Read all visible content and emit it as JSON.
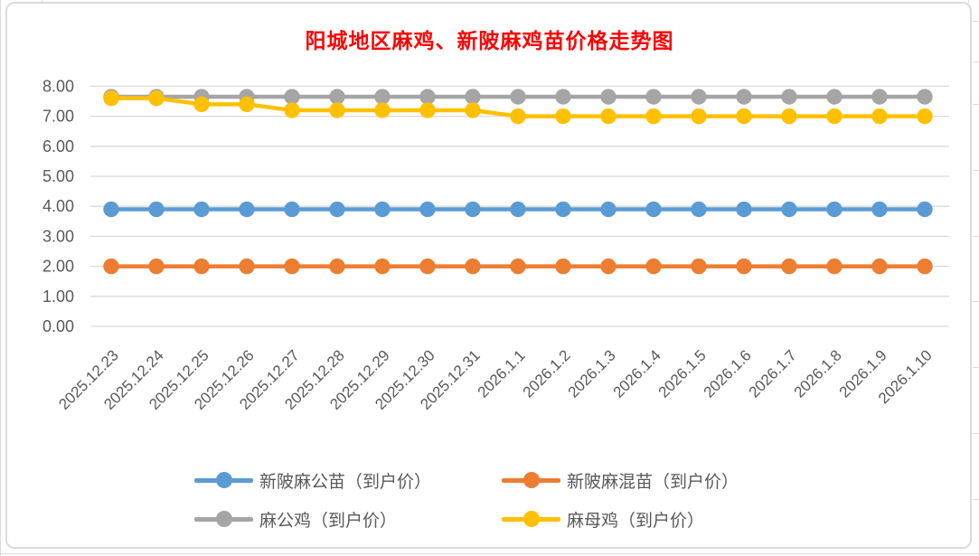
{
  "chart_data": {
    "type": "line",
    "title": "阳城地区麻鸡、新陂麻鸡苗价格走势图",
    "title_color": "#FF0000",
    "categories": [
      "2025.12.23",
      "2025.12.24",
      "2025.12.25",
      "2025.12.26",
      "2025.12.27",
      "2025.12.28",
      "2025.12.29",
      "2025.12.30",
      "2025.12.31",
      "2026.1.1",
      "2026.1.2",
      "2026.1.3",
      "2026.1.4",
      "2026.1.5",
      "2026.1.6",
      "2026.1.7",
      "2026.1.8",
      "2026.1.9",
      "2026.1.10"
    ],
    "series": [
      {
        "name": "新陂麻公苗（到户价）",
        "color": "#5B9BD5",
        "values": [
          3.9,
          3.9,
          3.9,
          3.9,
          3.9,
          3.9,
          3.9,
          3.9,
          3.9,
          3.9,
          3.9,
          3.9,
          3.9,
          3.9,
          3.9,
          3.9,
          3.9,
          3.9,
          3.9
        ]
      },
      {
        "name": "新陂麻混苗（到户价）",
        "color": "#ED7D31",
        "values": [
          2.0,
          2.0,
          2.0,
          2.0,
          2.0,
          2.0,
          2.0,
          2.0,
          2.0,
          2.0,
          2.0,
          2.0,
          2.0,
          2.0,
          2.0,
          2.0,
          2.0,
          2.0,
          2.0
        ]
      },
      {
        "name": "麻公鸡（到户价）",
        "color": "#A5A5A5",
        "values": [
          7.65,
          7.65,
          7.65,
          7.65,
          7.65,
          7.65,
          7.65,
          7.65,
          7.65,
          7.65,
          7.65,
          7.65,
          7.65,
          7.65,
          7.65,
          7.65,
          7.65,
          7.65,
          7.65
        ]
      },
      {
        "name": "麻母鸡（到户价）",
        "color": "#FFC000",
        "values": [
          7.6,
          7.6,
          7.4,
          7.4,
          7.2,
          7.2,
          7.2,
          7.2,
          7.2,
          7.0,
          7.0,
          7.0,
          7.0,
          7.0,
          7.0,
          7.0,
          7.0,
          7.0,
          7.0
        ]
      }
    ],
    "ylim": [
      0,
      8
    ],
    "ytick_step": 1,
    "ytick_labels": [
      "0.00",
      "1.00",
      "2.00",
      "3.00",
      "4.00",
      "5.00",
      "6.00",
      "7.00",
      "8.00"
    ],
    "grid": true,
    "gridline_color": "#D9D9D9",
    "axis_label_color": "#595959",
    "legend_position": "bottom"
  }
}
